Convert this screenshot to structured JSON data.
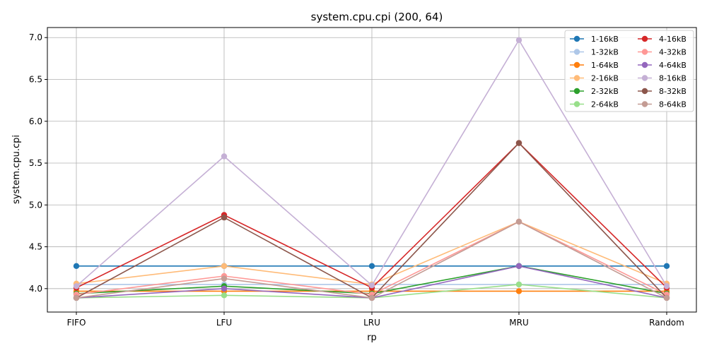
{
  "chart_data": {
    "type": "line",
    "title": "system.cpu.cpi (200, 64)",
    "xlabel": "rp",
    "ylabel": "system.cpu.cpi",
    "categories": [
      "FIFO",
      "LFU",
      "LRU",
      "MRU",
      "Random"
    ],
    "ylim": [
      3.72,
      7.12
    ],
    "yticks": [
      "4.0",
      "4.5",
      "5.0",
      "5.5",
      "6.0",
      "6.5",
      "7.0"
    ],
    "grid": true,
    "legend_position": "top-right",
    "series": [
      {
        "name": "1-16kB",
        "color": "#1f77b4",
        "values": [
          4.27,
          4.27,
          4.27,
          4.27,
          4.27
        ]
      },
      {
        "name": "1-32kB",
        "color": "#aec7e8",
        "values": [
          4.05,
          4.05,
          4.05,
          4.05,
          4.05
        ]
      },
      {
        "name": "1-64kB",
        "color": "#ff7f0e",
        "values": [
          3.97,
          3.97,
          3.97,
          3.97,
          3.97
        ]
      },
      {
        "name": "2-16kB",
        "color": "#ffbb78",
        "values": [
          4.06,
          4.27,
          4.05,
          4.8,
          4.06
        ]
      },
      {
        "name": "2-32kB",
        "color": "#2ca02c",
        "values": [
          3.94,
          4.03,
          3.94,
          4.27,
          3.94
        ]
      },
      {
        "name": "2-64kB",
        "color": "#98df8a",
        "values": [
          3.89,
          3.92,
          3.89,
          4.05,
          3.89
        ]
      },
      {
        "name": "4-16kB",
        "color": "#d62728",
        "values": [
          4.01,
          4.88,
          4.01,
          5.74,
          4.01
        ]
      },
      {
        "name": "4-32kB",
        "color": "#ff9896",
        "values": [
          3.93,
          4.15,
          3.93,
          4.8,
          3.93
        ]
      },
      {
        "name": "4-64kB",
        "color": "#9467bd",
        "values": [
          3.89,
          4.0,
          3.89,
          4.27,
          3.89
        ]
      },
      {
        "name": "8-16kB",
        "color": "#c5b0d5",
        "values": [
          4.03,
          5.58,
          4.04,
          6.97,
          4.03
        ]
      },
      {
        "name": "8-32kB",
        "color": "#8c564b",
        "values": [
          3.89,
          4.85,
          3.89,
          5.74,
          3.89
        ]
      },
      {
        "name": "8-64kB",
        "color": "#c49c94",
        "values": [
          3.89,
          4.12,
          3.89,
          4.8,
          3.89
        ]
      }
    ]
  }
}
